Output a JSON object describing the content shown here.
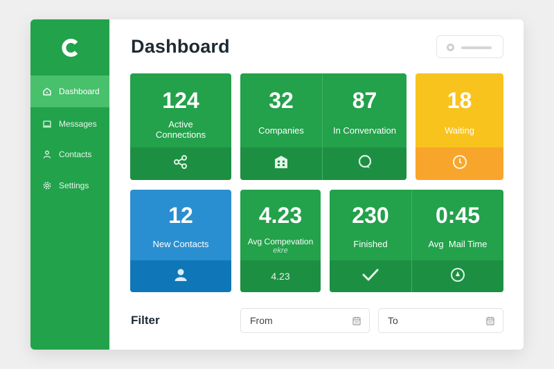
{
  "sidebar": {
    "items": [
      {
        "label": "Dashboard",
        "icon": "home-icon",
        "active": true
      },
      {
        "label": "Messages",
        "icon": "laptop-icon",
        "active": false
      },
      {
        "label": "Contacts",
        "icon": "person-icon",
        "active": false
      },
      {
        "label": "Settings",
        "icon": "gear-icon",
        "active": false
      }
    ]
  },
  "header": {
    "title": "Dashboard"
  },
  "cards": {
    "active_connections": {
      "value": "124",
      "label": "Active Connections",
      "icon": "share-nodes-icon"
    },
    "companies": {
      "value": "32",
      "label": "Companies",
      "icon": "building-icon"
    },
    "in_conversation": {
      "value": "87",
      "label": "In Convervation",
      "icon": "chat-bubble-icon"
    },
    "waiting": {
      "value": "18",
      "label": "Waiting",
      "icon": "clock-icon"
    },
    "new_contacts": {
      "value": "12",
      "label": "New Contacts",
      "icon": "person-icon"
    },
    "avg_compensation": {
      "value": "4.23",
      "label": "Avg Compevation",
      "sublabel": "ekre",
      "footer_value": "4.23"
    },
    "finished": {
      "value": "230",
      "label": "Finished",
      "icon": "checkmark-icon"
    },
    "avg_mail_time": {
      "value": "0:45",
      "label": "Avg  Mail Time",
      "icon": "compass-icon"
    }
  },
  "filter": {
    "label": "Filter",
    "from_placeholder": "From",
    "to_placeholder": "To"
  },
  "colors": {
    "green": "#23a14b",
    "green_dark": "#1d8f42",
    "sidebar_active": "#48c06c",
    "yellow": "#f9c31e",
    "orange": "#f8a52b",
    "blue": "#2a8fd0",
    "blue_dark": "#0f77b8"
  }
}
